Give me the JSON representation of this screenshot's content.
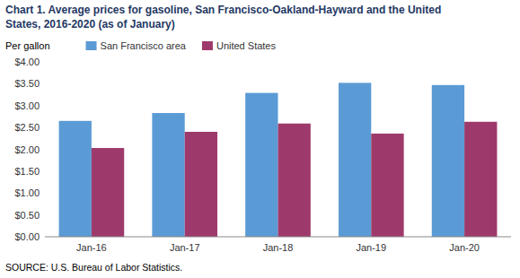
{
  "chart_data": {
    "type": "bar",
    "title": [
      "Chart 1. Average prices for gasoline, San Francisco-Oakland-Hayward and the United",
      "States, 2016-2020  (as of January)"
    ],
    "y_label": "Per gallon",
    "source": "SOURCE: U.S. Bureau of Labor Statistics.",
    "categories": [
      "Jan-16",
      "Jan-17",
      "Jan-18",
      "Jan-19",
      "Jan-20"
    ],
    "series": [
      {
        "name": "San Francisco area",
        "color": "#5B9BD5",
        "values": [
          2.65,
          2.83,
          3.29,
          3.52,
          3.47
        ]
      },
      {
        "name": "United States",
        "color": "#9E3A6B",
        "values": [
          2.03,
          2.4,
          2.59,
          2.36,
          2.63
        ]
      }
    ],
    "ylim": [
      0,
      4.0
    ],
    "yticks": [
      {
        "value": 0.0,
        "label": "$0.00"
      },
      {
        "value": 0.5,
        "label": "$0.50"
      },
      {
        "value": 1.0,
        "label": "$1.00"
      },
      {
        "value": 1.5,
        "label": "$1.50"
      },
      {
        "value": 2.0,
        "label": "$2.00"
      },
      {
        "value": 2.5,
        "label": "$2.50"
      },
      {
        "value": 3.0,
        "label": "$3.00"
      },
      {
        "value": 3.5,
        "label": "$3.50"
      },
      {
        "value": 4.0,
        "label": "$4.00"
      }
    ],
    "grid": false,
    "legend": "upper left"
  }
}
